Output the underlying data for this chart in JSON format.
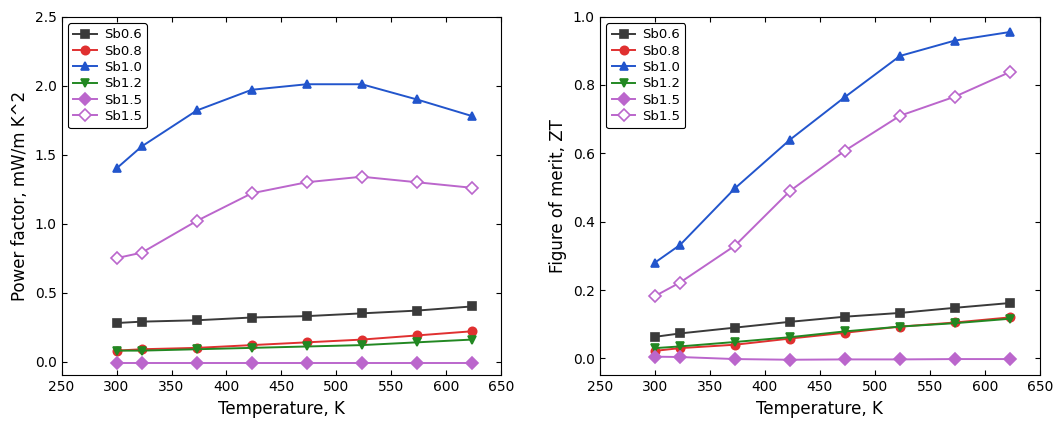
{
  "temp": [
    300,
    323,
    373,
    423,
    473,
    523,
    573,
    623
  ],
  "pf": {
    "Sb0.6": [
      0.28,
      0.29,
      0.3,
      0.32,
      0.33,
      0.35,
      0.37,
      0.4
    ],
    "Sb0.8": [
      0.08,
      0.09,
      0.1,
      0.12,
      0.14,
      0.16,
      0.19,
      0.22
    ],
    "Sb1.0": [
      1.4,
      1.56,
      1.82,
      1.97,
      2.01,
      2.01,
      1.9,
      1.78
    ],
    "Sb1.2": [
      0.08,
      0.08,
      0.09,
      0.1,
      0.11,
      0.12,
      0.14,
      0.16
    ],
    "Sb1.5_solid": [
      -0.01,
      -0.01,
      -0.01,
      -0.01,
      -0.01,
      -0.01,
      -0.01,
      -0.01
    ],
    "Sb1.5_open": [
      0.75,
      0.79,
      1.02,
      1.22,
      1.3,
      1.34,
      1.3,
      1.26
    ]
  },
  "zt": {
    "Sb0.6": [
      0.063,
      0.073,
      0.09,
      0.107,
      0.122,
      0.133,
      0.148,
      0.162
    ],
    "Sb0.8": [
      0.022,
      0.03,
      0.04,
      0.058,
      0.075,
      0.093,
      0.105,
      0.12
    ],
    "Sb1.0": [
      0.28,
      0.332,
      0.498,
      0.64,
      0.765,
      0.885,
      0.93,
      0.955
    ],
    "Sb1.2": [
      0.03,
      0.035,
      0.048,
      0.062,
      0.079,
      0.093,
      0.103,
      0.116
    ],
    "Sb1.5_solid": [
      0.005,
      0.004,
      -0.002,
      -0.004,
      -0.003,
      -0.003,
      -0.002,
      -0.002
    ],
    "Sb1.5_open": [
      0.182,
      0.222,
      0.33,
      0.49,
      0.608,
      0.71,
      0.766,
      0.838
    ]
  },
  "series_styles": {
    "Sb0.6": {
      "color": "#3a3a3a",
      "marker": "s",
      "filled": true,
      "label": "Sb0.6"
    },
    "Sb0.8": {
      "color": "#e03030",
      "marker": "o",
      "filled": true,
      "label": "Sb0.8"
    },
    "Sb1.0": {
      "color": "#2255cc",
      "marker": "^",
      "filled": true,
      "label": "Sb1.0"
    },
    "Sb1.2": {
      "color": "#228822",
      "marker": "v",
      "filled": true,
      "label": "Sb1.2"
    },
    "Sb1.5_solid": {
      "color": "#bb66cc",
      "marker": "D",
      "filled": true,
      "label": "Sb1.5"
    },
    "Sb1.5_open": {
      "color": "#bb66cc",
      "marker": "D",
      "filled": false,
      "label": "Sb1.5"
    }
  },
  "pf_ylim": [
    -0.1,
    2.5
  ],
  "zt_ylim": [
    -0.05,
    1.0
  ],
  "xlim": [
    250,
    650
  ],
  "xlabel": "Temperature, K",
  "pf_ylabel": "Power factor, mW/m K^2",
  "zt_ylabel": "Figure of merit, ZT",
  "xticks": [
    250,
    300,
    350,
    400,
    450,
    500,
    550,
    600,
    650
  ],
  "pf_yticks": [
    0.0,
    0.5,
    1.0,
    1.5,
    2.0,
    2.5
  ],
  "zt_yticks": [
    0.0,
    0.2,
    0.4,
    0.6,
    0.8,
    1.0
  ],
  "background_color": "#ffffff",
  "markersize": 6,
  "linewidth": 1.4,
  "legend_fontsize": 9.5,
  "tick_labelsize": 10,
  "axis_labelsize": 12
}
